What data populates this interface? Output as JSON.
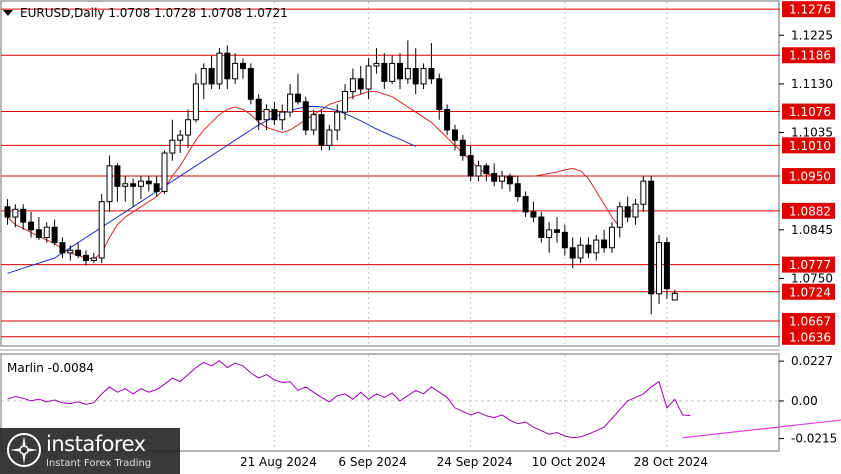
{
  "colors": {
    "bull": "#ffffff",
    "bear": "#000000",
    "level": "#e00000",
    "ma_fast": "#d42c2c",
    "ma_slow": "#1f2fbf",
    "osc": "#a000b8",
    "trend": "#e040e0",
    "grid": "#c8c8c8"
  },
  "chart_data": [
    {
      "type": "candlestick",
      "title": "EURUSD,Daily  1.0708 1.0728 1.0708 1.0721",
      "ylim": [
        1.062,
        1.129
      ],
      "y_ticks": [
        "1.1225",
        "1.1130",
        "1.1035",
        "1.0845",
        "1.0750"
      ],
      "x_ticks": [
        {
          "label": "21 Aug 2024",
          "x": 34
        },
        {
          "label": "6 Sep 2024",
          "x": 46
        },
        {
          "label": "24 Sep 2024",
          "x": 59
        },
        {
          "label": "10 Oct 2024",
          "x": 71
        },
        {
          "label": "28 Oct 2024",
          "x": 84
        }
      ],
      "levels": [
        1.1276,
        1.1186,
        1.1076,
        1.101,
        1.095,
        1.0882,
        1.0777,
        1.0724,
        1.0667,
        1.0636
      ],
      "candles": [
        [
          1.089,
          1.0905,
          1.0855,
          1.087
        ],
        [
          1.087,
          1.0895,
          1.085,
          1.0885
        ],
        [
          1.0885,
          1.0895,
          1.0845,
          1.086
        ],
        [
          1.086,
          1.088,
          1.083,
          1.0845
        ],
        [
          1.0845,
          1.087,
          1.0825,
          1.083
        ],
        [
          1.083,
          1.086,
          1.082,
          1.085
        ],
        [
          1.085,
          1.0865,
          1.0815,
          1.082
        ],
        [
          1.082,
          1.083,
          1.079,
          1.08
        ],
        [
          1.08,
          1.0815,
          1.0785,
          1.0805
        ],
        [
          1.0805,
          1.082,
          1.079,
          1.0795
        ],
        [
          1.0795,
          1.0805,
          1.0775,
          1.0785
        ],
        [
          1.0785,
          1.08,
          1.078,
          1.079
        ],
        [
          1.079,
          1.0915,
          1.078,
          1.09
        ],
        [
          1.09,
          1.099,
          1.088,
          1.097
        ],
        [
          1.097,
          1.0975,
          1.09,
          1.093
        ],
        [
          1.093,
          1.095,
          1.09,
          1.0935
        ],
        [
          1.0935,
          1.0945,
          1.089,
          1.093
        ],
        [
          1.093,
          1.095,
          1.0905,
          1.094
        ],
        [
          1.094,
          1.095,
          1.092,
          1.0935
        ],
        [
          1.0935,
          1.095,
          1.091,
          1.092
        ],
        [
          1.092,
          1.1,
          1.0915,
          1.0995
        ],
        [
          1.0995,
          1.106,
          1.098,
          1.102
        ],
        [
          1.102,
          1.104,
          1.0995,
          1.103
        ],
        [
          1.103,
          1.108,
          1.1005,
          1.106
        ],
        [
          1.106,
          1.115,
          1.1055,
          1.113
        ],
        [
          1.113,
          1.117,
          1.11,
          1.116
        ],
        [
          1.116,
          1.1185,
          1.112,
          1.113
        ],
        [
          1.113,
          1.12,
          1.112,
          1.119
        ],
        [
          1.119,
          1.1205,
          1.112,
          1.114
        ],
        [
          1.114,
          1.119,
          1.113,
          1.117
        ],
        [
          1.117,
          1.118,
          1.114,
          1.116
        ],
        [
          1.116,
          1.117,
          1.109,
          1.11
        ],
        [
          1.11,
          1.111,
          1.104,
          1.106
        ],
        [
          1.106,
          1.109,
          1.104,
          1.108
        ],
        [
          1.108,
          1.1095,
          1.105,
          1.106
        ],
        [
          1.106,
          1.109,
          1.104,
          1.1075
        ],
        [
          1.1075,
          1.113,
          1.1065,
          1.111
        ],
        [
          1.111,
          1.115,
          1.109,
          1.1095
        ],
        [
          1.1095,
          1.1105,
          1.103,
          1.104
        ],
        [
          1.104,
          1.108,
          1.103,
          1.107
        ],
        [
          1.107,
          1.108,
          1.1,
          1.101
        ],
        [
          1.101,
          1.105,
          1.1,
          1.104
        ],
        [
          1.104,
          1.109,
          1.102,
          1.1075
        ],
        [
          1.1075,
          1.113,
          1.106,
          1.1115
        ],
        [
          1.1115,
          1.116,
          1.11,
          1.114
        ],
        [
          1.114,
          1.1165,
          1.111,
          1.112
        ],
        [
          1.112,
          1.118,
          1.11,
          1.1165
        ],
        [
          1.1165,
          1.12,
          1.115,
          1.117
        ],
        [
          1.117,
          1.119,
          1.112,
          1.1135
        ],
        [
          1.1135,
          1.1185,
          1.113,
          1.117
        ],
        [
          1.117,
          1.119,
          1.112,
          1.114
        ],
        [
          1.114,
          1.1215,
          1.113,
          1.116
        ],
        [
          1.116,
          1.12,
          1.111,
          1.113
        ],
        [
          1.113,
          1.117,
          1.112,
          1.116
        ],
        [
          1.116,
          1.121,
          1.113,
          1.114
        ],
        [
          1.114,
          1.115,
          1.106,
          1.108
        ],
        [
          1.108,
          1.109,
          1.103,
          1.104
        ],
        [
          1.104,
          1.105,
          1.1,
          1.102
        ],
        [
          1.102,
          1.103,
          1.098,
          1.099
        ],
        [
          1.099,
          1.101,
          1.094,
          1.095
        ],
        [
          1.095,
          1.098,
          1.094,
          1.097
        ],
        [
          1.097,
          1.0975,
          1.094,
          1.0955
        ],
        [
          1.0955,
          1.0975,
          1.093,
          1.094
        ],
        [
          1.094,
          1.096,
          1.0925,
          1.095
        ],
        [
          1.095,
          1.0955,
          1.092,
          1.0935
        ],
        [
          1.0935,
          1.095,
          1.09,
          1.091
        ],
        [
          1.091,
          1.092,
          1.087,
          1.088
        ],
        [
          1.088,
          1.09,
          1.086,
          1.087
        ],
        [
          1.087,
          1.088,
          1.082,
          1.083
        ],
        [
          1.083,
          1.086,
          1.08,
          1.0845
        ],
        [
          1.0845,
          1.087,
          1.082,
          1.084
        ],
        [
          1.084,
          1.0855,
          1.0795,
          1.081
        ],
        [
          1.081,
          1.083,
          1.077,
          1.079
        ],
        [
          1.079,
          1.083,
          1.078,
          1.0815
        ],
        [
          1.0815,
          1.083,
          1.079,
          1.08
        ],
        [
          1.08,
          1.0835,
          1.0785,
          1.0825
        ],
        [
          1.0825,
          1.0845,
          1.08,
          1.081
        ],
        [
          1.081,
          1.086,
          1.08,
          1.085
        ],
        [
          1.085,
          1.09,
          1.083,
          1.089
        ],
        [
          1.089,
          1.091,
          1.086,
          1.087
        ],
        [
          1.087,
          1.0905,
          1.0855,
          1.0895
        ],
        [
          1.0895,
          1.095,
          1.088,
          1.094
        ],
        [
          1.094,
          1.095,
          1.068,
          1.072
        ],
        [
          1.072,
          1.0835,
          1.07,
          1.082
        ],
        [
          1.082,
          1.083,
          1.071,
          1.073
        ],
        [
          1.0708,
          1.0728,
          1.0708,
          1.0721
        ]
      ],
      "series": [
        {
          "name": "MA fast",
          "values": [
            1.087,
            1.0855,
            1.0848,
            1.084,
            1.0832,
            1.0825,
            1.0818,
            1.0808,
            1.08,
            1.0795,
            1.079,
            1.0788,
            1.08,
            1.083,
            1.0855,
            1.087,
            1.088,
            1.089,
            1.09,
            1.091,
            1.0925,
            1.095,
            1.097,
            1.0995,
            1.102,
            1.104,
            1.1055,
            1.107,
            1.108,
            1.1085,
            1.108,
            1.107,
            1.1055,
            1.1045,
            1.104,
            1.1035,
            1.104,
            1.105,
            1.106,
            1.107,
            1.108,
            1.109,
            1.1095,
            1.11,
            1.1105,
            1.111,
            1.1115,
            1.1115,
            1.111,
            1.1105,
            1.1095,
            1.1085,
            1.1075,
            1.1065,
            1.1055,
            1.104,
            1.1025,
            1.101,
            1.0995,
            1.098,
            1.0965,
            1.0955,
            1.095,
            1.0948,
            1.0948,
            1.095,
            1.095,
            1.095,
            1.0952,
            1.0955,
            1.0958,
            1.0962,
            1.0965,
            1.096,
            1.0945,
            1.092,
            1.0895,
            1.087,
            1.085
          ]
        },
        {
          "name": "MA slow",
          "values": [
            1.076,
            1.0765,
            1.077,
            1.0775,
            1.078,
            1.0785,
            1.079,
            1.08,
            1.081,
            1.082,
            1.083,
            1.084,
            1.085,
            1.086,
            1.087,
            1.088,
            1.089,
            1.09,
            1.091,
            1.092,
            1.093,
            1.094,
            1.095,
            1.096,
            1.097,
            1.098,
            1.099,
            1.1,
            1.101,
            1.102,
            1.103,
            1.104,
            1.105,
            1.1058,
            1.1065,
            1.1072,
            1.1078,
            1.1082,
            1.1085,
            1.1086,
            1.1085,
            1.1082,
            1.1078,
            1.1072,
            1.1065,
            1.1058,
            1.105,
            1.1042,
            1.1035,
            1.1028,
            1.1022,
            1.1015,
            1.1008
          ]
        }
      ]
    },
    {
      "type": "line",
      "title": "Marlin -0.0084",
      "ylim": [
        -0.028,
        0.0262
      ],
      "y_ticks": [
        "0.0227",
        "0.00",
        "-0.0215"
      ],
      "series": [
        {
          "name": "Marlin",
          "values": [
            0.001,
            0.0025,
            0.0015,
            0.0,
            0.001,
            -0.0005,
            0.0005,
            -0.001,
            -0.0015,
            -0.0005,
            -0.002,
            -0.001,
            0.004,
            0.008,
            0.005,
            0.007,
            0.004,
            0.007,
            0.005,
            0.0065,
            0.0095,
            0.013,
            0.011,
            0.015,
            0.019,
            0.022,
            0.02,
            0.023,
            0.019,
            0.0215,
            0.02,
            0.016,
            0.013,
            0.015,
            0.012,
            0.0105,
            0.011,
            0.006,
            0.008,
            0.005,
            0.002,
            -0.0005,
            0.003,
            0.004,
            0.001,
            0.005,
            0.001,
            0.004,
            0.002,
            0.0045,
            0.0,
            0.003,
            0.006,
            0.004,
            0.008,
            0.005,
            0.002,
            -0.004,
            -0.006,
            -0.008,
            -0.0065,
            -0.0085,
            -0.0095,
            -0.008,
            -0.011,
            -0.013,
            -0.012,
            -0.015,
            -0.017,
            -0.019,
            -0.018,
            -0.02,
            -0.021,
            -0.0205,
            -0.019,
            -0.017,
            -0.015,
            -0.01,
            -0.005,
            0.0,
            0.002,
            0.004,
            0.008,
            0.011,
            -0.004,
            0.001,
            -0.008,
            -0.0084
          ]
        },
        {
          "name": "trend",
          "x": [
            86,
            116
          ],
          "values": [
            -0.021,
            -0.006
          ]
        }
      ]
    }
  ],
  "branding": {
    "name": "instaforex",
    "tagline": "Instant Forex Trading"
  }
}
